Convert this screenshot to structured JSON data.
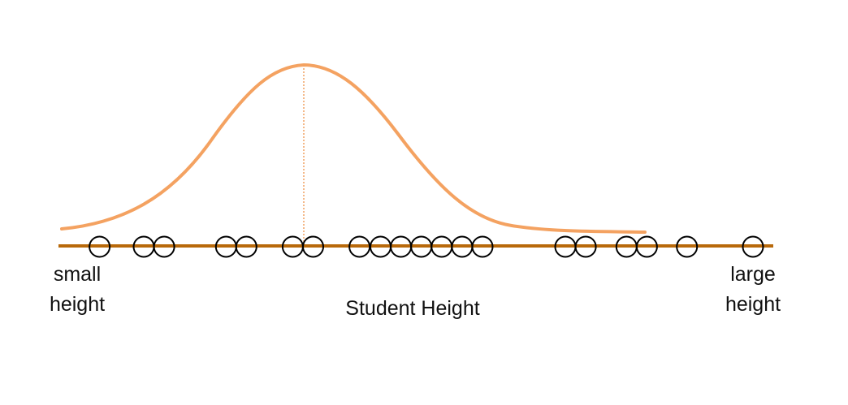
{
  "axis": {
    "label": "Student Height",
    "left_label": [
      "small",
      "height"
    ],
    "right_label": [
      "large",
      "height"
    ]
  },
  "colors": {
    "axis_line": "#b8690b",
    "curve": "#f4a261",
    "center_line": "#f0a060",
    "points": "#000000"
  },
  "distribution": {
    "shape": "right-skewed bell curve",
    "peak_marker": "dotted vertical line at peak"
  },
  "points": [
    {
      "pos": 0.07
    },
    {
      "pos": 0.133
    },
    {
      "pos": 0.162
    },
    {
      "pos": 0.25
    },
    {
      "pos": 0.279
    },
    {
      "pos": 0.345
    },
    {
      "pos": 0.374
    },
    {
      "pos": 0.44
    },
    {
      "pos": 0.47
    },
    {
      "pos": 0.499
    },
    {
      "pos": 0.528
    },
    {
      "pos": 0.557
    },
    {
      "pos": 0.586
    },
    {
      "pos": 0.615
    },
    {
      "pos": 0.733
    },
    {
      "pos": 0.762
    },
    {
      "pos": 0.82
    },
    {
      "pos": 0.849
    },
    {
      "pos": 0.906
    },
    {
      "pos": 1.0
    }
  ]
}
